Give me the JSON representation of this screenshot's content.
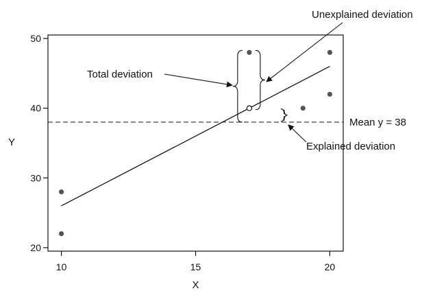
{
  "chart_data": {
    "type": "scatter",
    "title": "",
    "xlabel": "X",
    "ylabel": "Y",
    "xlim": [
      9.5,
      20.5
    ],
    "ylim": [
      19.5,
      50.5
    ],
    "x_ticks": [
      10,
      15,
      20
    ],
    "y_ticks": [
      20,
      30,
      40,
      50
    ],
    "grid": false,
    "points": [
      {
        "x": 10,
        "y": 28
      },
      {
        "x": 10,
        "y": 22
      },
      {
        "x": 17,
        "y": 48
      },
      {
        "x": 19,
        "y": 40
      },
      {
        "x": 20,
        "y": 48
      },
      {
        "x": 20,
        "y": 42
      }
    ],
    "regression_line": {
      "x": [
        10,
        20
      ],
      "y": [
        26,
        46
      ]
    },
    "predicted_point": {
      "x": 17,
      "y": 40
    },
    "mean_line": {
      "y": 38,
      "label": "Mean y = 38"
    },
    "annotations": {
      "total": "Total deviation",
      "unexplained": "Unexplained deviation",
      "explained": "Explained deviation"
    },
    "colors": {
      "points": "#555555",
      "lines": "#111111"
    }
  }
}
